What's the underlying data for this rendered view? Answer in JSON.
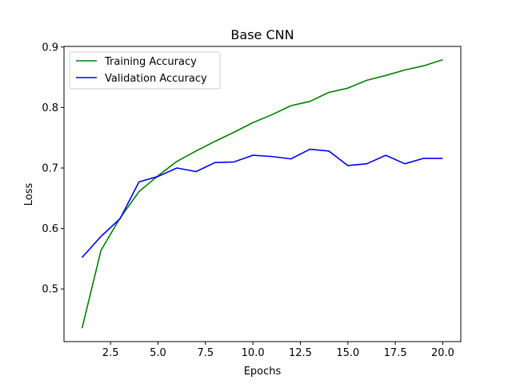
{
  "chart_data": {
    "type": "line",
    "title": "Base CNN",
    "xlabel": "Epochs",
    "ylabel": "Loss",
    "x": [
      1,
      2,
      3,
      4,
      5,
      6,
      7,
      8,
      9,
      10,
      11,
      12,
      13,
      14,
      15,
      16,
      17,
      18,
      19,
      20
    ],
    "series": [
      {
        "name": "Training Accuracy",
        "color": "#008000",
        "values": [
          0.435,
          0.564,
          0.617,
          0.661,
          0.687,
          0.711,
          0.728,
          0.744,
          0.759,
          0.775,
          0.788,
          0.803,
          0.81,
          0.825,
          0.832,
          0.845,
          0.853,
          0.862,
          0.869,
          0.879
        ]
      },
      {
        "name": "Validation Accuracy",
        "color": "#0000ff",
        "values": [
          0.552,
          0.587,
          0.616,
          0.677,
          0.686,
          0.7,
          0.694,
          0.709,
          0.71,
          0.721,
          0.719,
          0.715,
          0.731,
          0.728,
          0.704,
          0.707,
          0.721,
          0.707,
          0.716,
          0.716
        ]
      }
    ],
    "xlim": [
      0.05,
      20.95
    ],
    "ylim": [
      0.413,
      0.901
    ],
    "xticks": [
      "2.5",
      "5.0",
      "7.5",
      "10.0",
      "12.5",
      "15.0",
      "17.5",
      "20.0"
    ],
    "yticks": [
      "0.5",
      "0.6",
      "0.7",
      "0.8",
      "0.9"
    ],
    "grid": false,
    "legend_position": "upper-left"
  }
}
